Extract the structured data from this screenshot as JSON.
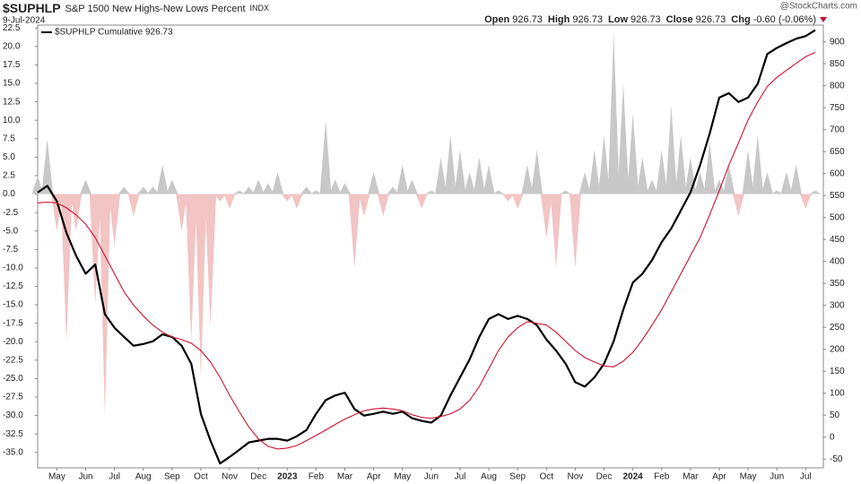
{
  "header": {
    "symbol": "$SUPHLP",
    "name": "S&P 1500 New Highs-New Lows Percent",
    "exchange": "INDX",
    "date": "9-Jul-2024",
    "credit": "@StockCharts.com",
    "quote": [
      {
        "label": "Open",
        "value": "926.73"
      },
      {
        "label": "High",
        "value": "926.73"
      },
      {
        "label": "Low",
        "value": "926.73"
      },
      {
        "label": "Close",
        "value": "926.73"
      },
      {
        "label": "Chg",
        "value": "-0.60 (-0.06%)"
      }
    ]
  },
  "chart_data": {
    "type": "line",
    "categories": [
      null,
      null,
      "May",
      null,
      null,
      "Jun",
      null,
      null,
      "Jul",
      null,
      null,
      "Aug",
      null,
      null,
      "Sep",
      null,
      null,
      "Oct",
      null,
      null,
      "Nov",
      null,
      null,
      "Dec",
      null,
      null,
      "2023",
      null,
      null,
      "Feb",
      null,
      null,
      "Mar",
      null,
      null,
      "Apr",
      null,
      null,
      "May",
      null,
      null,
      "Jun",
      null,
      null,
      "Jul",
      null,
      null,
      "Aug",
      null,
      null,
      "Sep",
      null,
      null,
      "Oct",
      null,
      null,
      "Nov",
      null,
      null,
      "Dec",
      null,
      null,
      "2024",
      null,
      null,
      "Feb",
      null,
      null,
      "Mar",
      null,
      null,
      "Apr",
      null,
      null,
      "May",
      null,
      null,
      "Jun",
      null,
      null,
      "Jul",
      null
    ],
    "series": [
      {
        "type": "area",
        "axis": "y",
        "color": "#c8c8c8",
        "negative_color": "#f2c4c4",
        "values": [
          2.5,
          7.5,
          -5,
          -20,
          -5,
          2,
          -15,
          -30,
          -7,
          1,
          -3,
          1,
          1,
          4,
          2,
          -5,
          -20,
          -25,
          -18,
          -1,
          -2,
          0.5,
          1,
          2,
          1.5,
          3,
          -1,
          -2,
          1,
          0.5,
          10,
          2,
          1.5,
          -10,
          -3,
          3,
          -3,
          1,
          4,
          2,
          -2,
          0.5,
          5,
          8,
          6,
          3,
          5,
          4,
          0.5,
          -1,
          -2,
          4,
          6,
          -6,
          -10,
          0.5,
          -10,
          3,
          6,
          8,
          22,
          15,
          11,
          5,
          2,
          6,
          12,
          8,
          5,
          3,
          7,
          2,
          4,
          -3,
          6,
          8,
          3,
          0.5,
          3,
          4,
          -2,
          0.5
        ]
      },
      {
        "name": "$SUPHLP Cumulative 926.73",
        "axis": "y2",
        "color": "#000000",
        "values": [
          557,
          572,
          537,
          465,
          413,
          372,
          393,
          280,
          249,
          228,
          208,
          212,
          218,
          234,
          228,
          208,
          167,
          53,
          -8,
          -60,
          -45,
          -29,
          -12,
          -8,
          -4,
          -4,
          -8,
          2,
          16,
          53,
          84,
          95,
          101,
          64,
          49,
          53,
          58,
          53,
          58,
          43,
          37,
          33,
          49,
          95,
          136,
          177,
          228,
          269,
          280,
          269,
          276,
          269,
          255,
          222,
          197,
          167,
          125,
          115,
          136,
          167,
          218,
          290,
          352,
          372,
          403,
          444,
          475,
          516,
          557,
          619,
          691,
          773,
          783,
          763,
          773,
          804,
          872,
          886,
          897,
          907,
          913,
          926.73
        ]
      },
      {
        "axis": "y2",
        "color": "#d01030",
        "values": [
          533,
          535,
          533,
          522,
          506,
          485,
          454,
          413,
          372,
          331,
          300,
          276,
          255,
          239,
          228,
          222,
          214,
          197,
          171,
          136,
          95,
          58,
          23,
          -4,
          -21,
          -27,
          -25,
          -19,
          -8,
          4,
          16,
          29,
          41,
          51,
          60,
          64,
          66,
          64,
          60,
          51,
          45,
          43,
          47,
          53,
          64,
          84,
          115,
          156,
          197,
          228,
          249,
          263,
          259,
          255,
          239,
          218,
          197,
          181,
          171,
          162,
          160,
          173,
          193,
          222,
          255,
          290,
          331,
          372,
          413,
          454,
          506,
          561,
          619,
          670,
          722,
          763,
          798,
          819,
          835,
          851,
          866,
          876
        ]
      }
    ],
    "ylim": [
      -37.1,
      22.9
    ],
    "yticks": [
      22.5,
      {
        "value": 20,
        "label": "20.0"
      },
      17.5,
      {
        "value": 15,
        "label": "15.0"
      },
      12.5,
      {
        "value": 10,
        "label": "10.0"
      },
      7.5,
      {
        "value": 5,
        "label": "5.0"
      },
      2.5,
      {
        "value": 0,
        "label": "0.0"
      },
      -2.5,
      {
        "value": -5,
        "label": "-5.0"
      },
      -7.5,
      {
        "value": -10,
        "label": "-10.0"
      },
      -12.5,
      {
        "value": -15,
        "label": "-15.0"
      },
      -17.5,
      {
        "value": -20,
        "label": "-20.0"
      },
      -22.5,
      {
        "value": -25,
        "label": "-25.0"
      },
      -27.5,
      {
        "value": -30,
        "label": "-30.0"
      },
      -32.5,
      {
        "value": -35,
        "label": "-35.0"
      }
    ],
    "y2lim": [
      -70,
      938
    ],
    "y2ticks": [
      -50,
      0,
      50,
      100,
      150,
      200,
      250,
      300,
      350,
      400,
      450,
      500,
      550,
      600,
      650,
      700,
      750,
      800,
      850,
      900
    ],
    "grid": false
  }
}
